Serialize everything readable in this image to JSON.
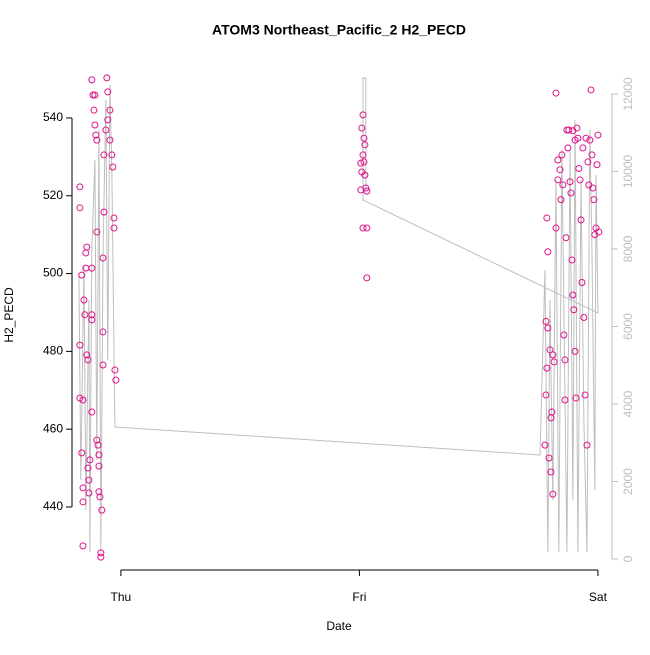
{
  "chart_data": {
    "type": "scatter",
    "title": "ATOM3 Northeast_Pacific_2 H2_PECD",
    "xlabel": "Date",
    "ylabel": "H2_PECD",
    "xlim": [
      -0.205,
      2.059
    ],
    "xticks": [
      {
        "value": 0,
        "label": "Thu"
      },
      {
        "value": 1,
        "label": "Fri"
      },
      {
        "value": 2,
        "label": "Sat"
      }
    ],
    "ylim": [
      423.8,
      554.9
    ],
    "yticks": [
      440,
      460,
      480,
      500,
      520,
      540
    ],
    "y2lim": [
      -284,
      12877
    ],
    "y2ticks": [
      0,
      2000,
      4000,
      6000,
      8000,
      10000,
      12000
    ],
    "series": [
      {
        "color": "#e0138c",
        "x": [
          -0.172,
          -0.172,
          -0.164,
          -0.172,
          -0.172,
          -0.159,
          -0.164,
          -0.159,
          -0.159,
          -0.159,
          -0.155,
          -0.151,
          -0.147,
          -0.147,
          -0.143,
          -0.143,
          -0.138,
          -0.138,
          -0.134,
          -0.13,
          -0.134,
          -0.122,
          -0.117,
          -0.109,
          -0.113,
          -0.109,
          -0.105,
          -0.101,
          -0.122,
          -0.122,
          -0.122,
          -0.122,
          -0.101,
          -0.101,
          -0.096,
          -0.092,
          -0.092,
          -0.092,
          -0.088,
          -0.08,
          -0.084,
          -0.084,
          -0.075,
          -0.075,
          -0.075,
          -0.071,
          -0.071,
          -0.063,
          -0.059,
          -0.055,
          -0.055,
          -0.046,
          -0.046,
          -0.034,
          -0.029,
          -0.029,
          -0.025,
          -0.021,
          -0.038,
          1.015,
          1.01,
          1.019,
          1.023,
          1.015,
          1.019,
          1.006,
          1.01,
          1.023,
          1.006,
          1.027,
          1.031,
          1.015,
          1.031,
          1.031,
          1.778,
          1.782,
          1.786,
          1.782,
          1.79,
          1.786,
          1.79,
          1.799,
          1.795,
          1.803,
          1.803,
          1.807,
          1.811,
          1.811,
          1.816,
          1.824,
          1.832,
          1.832,
          1.841,
          1.845,
          1.849,
          1.853,
          1.857,
          1.862,
          1.866,
          1.87,
          1.874,
          1.883,
          1.887,
          1.891,
          1.895,
          1.899,
          1.904,
          1.908,
          1.912,
          1.916,
          1.92,
          1.925,
          1.929,
          1.933,
          1.941,
          1.946,
          1.95,
          1.954,
          1.958,
          1.962,
          1.966,
          1.971,
          1.975,
          1.979,
          1.983,
          1.987,
          1.992,
          1.996,
          2.0,
          2.004,
          1.824,
          1.878,
          1.895,
          1.904,
          1.937,
          1.862
        ],
        "values": [
          522.3,
          516.9,
          499.6,
          481.6,
          468,
          467.5,
          453.9,
          444.9,
          441.3,
          430,
          493.2,
          489.4,
          501.4,
          505.3,
          506.8,
          479.1,
          477.8,
          450,
          446.9,
          452.1,
          443.6,
          549.8,
          545.9,
          545.9,
          542,
          538.2,
          535.6,
          534.3,
          501.4,
          489.4,
          488.1,
          464.4,
          510.7,
          457.2,
          455.9,
          450.5,
          453.4,
          443.9,
          442.6,
          439.2,
          428.2,
          427.1,
          504,
          476.5,
          485,
          515.8,
          530.5,
          536.9,
          550.3,
          546.7,
          539.5,
          534.3,
          542,
          527.4,
          514.3,
          511.7,
          475.2,
          472.6,
          530.5,
          540.8,
          537.4,
          534.8,
          533.1,
          530.5,
          528.7,
          528.4,
          526.1,
          525.3,
          521.5,
          522,
          521.2,
          511.7,
          511.7,
          498.9,
          455.9,
          468.8,
          475.7,
          487.7,
          505.6,
          514.3,
          486,
          480.4,
          452.6,
          449,
          462.9,
          464.4,
          443.3,
          479.1,
          477.3,
          546.4,
          529.2,
          524.1,
          526.7,
          519,
          530.5,
          522.8,
          484.2,
          477.8,
          509.2,
          536.9,
          532.3,
          523.6,
          520.7,
          503.5,
          494.5,
          490.7,
          480,
          468,
          537.4,
          534.8,
          527,
          524.1,
          513.8,
          497.7,
          488.7,
          468.8,
          534.8,
          455.9,
          528.7,
          522.8,
          534.3,
          547.2,
          530.5,
          522,
          519,
          510,
          511.7,
          528,
          535.6,
          510.7,
          511.7,
          536.9,
          536.7,
          534.3,
          532.3,
          467.5
        ]
      },
      {
        "color": "#bebebe",
        "axis": "y2",
        "x": [
          -0.176,
          -0.168,
          -0.155,
          -0.147,
          -0.134,
          -0.13,
          -0.122,
          -0.109,
          -0.101,
          -0.092,
          -0.084,
          -0.075,
          -0.063,
          -0.055,
          -0.046,
          -0.038,
          -0.025,
          1.757,
          1.778,
          1.79,
          1.799,
          1.811,
          1.824,
          1.836,
          1.849,
          1.862,
          1.87,
          1.883,
          1.895,
          1.904,
          1.916,
          1.929,
          1.941,
          1.954,
          1.966,
          1.975,
          1.987,
          1.992,
          2.0,
          1.015,
          1.015,
          1.027,
          1.027
        ],
        "values": [
          7329,
          2039,
          7587,
          1265,
          6684,
          181,
          7974,
          10297,
          2555,
          11071,
          232,
          7845,
          11845,
          5135,
          12232,
          10039,
          3406,
          2684,
          7458,
          181,
          6684,
          1523,
          9781,
          181,
          10555,
          4103,
          181,
          10555,
          1523,
          11329,
          181,
          9781,
          3587,
          181,
          11071,
          7974,
          1781,
          9910,
          6348,
          9265,
          12413,
          12413,
          9523
        ]
      }
    ]
  }
}
